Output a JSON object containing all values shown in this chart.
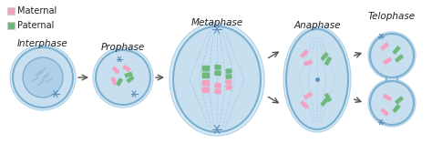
{
  "bg_color": "#ffffff",
  "cell_fill": "#c8dff0",
  "cell_edge": "#7ab0d0",
  "outer_fill": "#d8eaf5",
  "outer_edge": "#b0d0e8",
  "maternal_color": "#f4a0c0",
  "paternal_color": "#6db87a",
  "spindle_color": "#a0c8e0",
  "stages": [
    "Interphase",
    "Prophase",
    "Metaphase",
    "Anaphase",
    "Telophase"
  ],
  "stage_x": [
    47,
    135,
    238,
    348,
    430
  ],
  "legend_maternal": "Maternal",
  "legend_paternal": "Paternal",
  "font_size": 7.5,
  "star_color": "#6090b8",
  "nucleus_fill": "#b0cfe8",
  "nucleus_edge": "#7ab0d0"
}
